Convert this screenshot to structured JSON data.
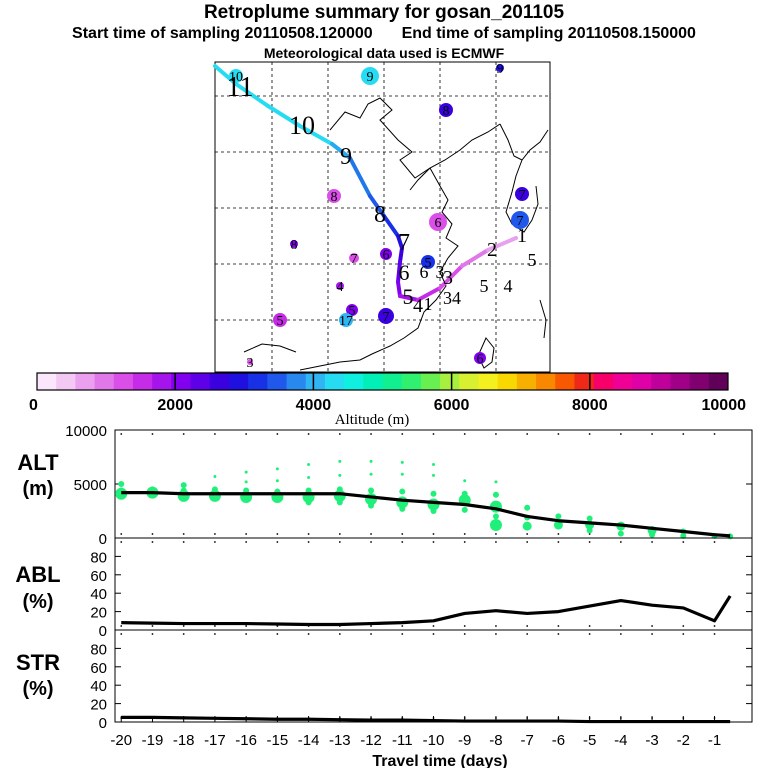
{
  "title": "Retroplume summary for gosan_201105",
  "start_label": "Start time of sampling 20110508.120000",
  "end_label": "End time of sampling 20110508.150000",
  "met_label": "Meteorological data used is ECMWF",
  "colorbar": {
    "label": "Altitude (m)",
    "ticks": [
      "0",
      "2000",
      "4000",
      "6000",
      "8000",
      "10000"
    ],
    "colors": [
      "#fbe6fb",
      "#f3c8f3",
      "#eaa0ee",
      "#e078ea",
      "#d94fe8",
      "#c62ce8",
      "#a514ea",
      "#8200f0",
      "#5e00e8",
      "#3b00e0",
      "#2010e0",
      "#1830e6",
      "#1f58ea",
      "#2888ee",
      "#30b4f2",
      "#26dcf2",
      "#10f0e0",
      "#00f0b8",
      "#10f090",
      "#30f070",
      "#68f050",
      "#a8f040",
      "#d8f030",
      "#f4f020",
      "#f8d800",
      "#f8b000",
      "#f88800",
      "#f85800",
      "#f02818",
      "#f8006a",
      "#f00094",
      "#e000a8",
      "#c0009a",
      "#a00088",
      "#800070",
      "#600058"
    ]
  },
  "map": {
    "markers": [
      {
        "label": "10",
        "color": "#26dcf2"
      },
      {
        "label": "9",
        "color": "#26dcf2"
      },
      {
        "label": "9",
        "color": "#2010e0"
      },
      {
        "label": "8",
        "color": "#3b00e0"
      },
      {
        "label": "8",
        "color": "#d94fe8"
      },
      {
        "label": "6",
        "color": "#d94fe8"
      },
      {
        "label": "7",
        "color": "#3b00e0"
      },
      {
        "label": "7",
        "color": "#1f58ea"
      },
      {
        "label": "8",
        "color": "#8200f0"
      },
      {
        "label": "7",
        "color": "#d94fe8"
      },
      {
        "label": "6",
        "color": "#8200f0"
      },
      {
        "label": "5",
        "color": "#1830e6"
      },
      {
        "label": "4",
        "color": "#a514ea"
      },
      {
        "label": "5",
        "color": "#c62ce8"
      },
      {
        "label": "5",
        "color": "#8200f0"
      },
      {
        "label": "17",
        "color": "#30b4f2"
      },
      {
        "label": "7",
        "color": "#3b00e0"
      },
      {
        "label": "6",
        "color": "#8200f0"
      },
      {
        "label": "3",
        "color": "#d94fe8"
      }
    ],
    "path_labels": [
      "11",
      "10",
      "9",
      "8",
      "7",
      "6",
      "5",
      "4",
      "3",
      "2",
      "1"
    ],
    "extra_labels": [
      "6",
      "3",
      "5",
      "4",
      "5",
      "34",
      "1"
    ]
  },
  "chart_data": [
    {
      "type": "line",
      "panel": "ALT",
      "ylabel": "ALT",
      "yunit": "(m)",
      "ylim": [
        0,
        10000
      ],
      "yticks": [
        0,
        5000,
        10000
      ],
      "x": [
        -20,
        -19,
        -18,
        -17,
        -16,
        -15,
        -14,
        -13,
        -12,
        -11,
        -10,
        -9,
        -8,
        -7,
        -6,
        -5,
        -4,
        -3,
        -2,
        -1,
        -0.5
      ],
      "values": [
        4200,
        4200,
        4100,
        4100,
        4100,
        4100,
        4100,
        4100,
        3800,
        3500,
        3300,
        3100,
        2700,
        2000,
        1600,
        1400,
        1200,
        900,
        600,
        300,
        200
      ],
      "scatter": [
        {
          "x": -20,
          "y": 4100,
          "size": "large"
        },
        {
          "x": -20,
          "y": 4400,
          "size": "small"
        },
        {
          "x": -20,
          "y": 5000,
          "size": "small"
        },
        {
          "x": -19,
          "y": 4200,
          "size": "large"
        },
        {
          "x": -19,
          "y": 4500,
          "size": "small"
        },
        {
          "x": -18,
          "y": 3900,
          "size": "large"
        },
        {
          "x": -18,
          "y": 4400,
          "size": "small"
        },
        {
          "x": -18,
          "y": 4900,
          "size": "small"
        },
        {
          "x": -17,
          "y": 3900,
          "size": "large"
        },
        {
          "x": -17,
          "y": 4500,
          "size": "small"
        },
        {
          "x": -17,
          "y": 5700,
          "size": "tiny"
        },
        {
          "x": -16,
          "y": 3800,
          "size": "large"
        },
        {
          "x": -16,
          "y": 4400,
          "size": "small"
        },
        {
          "x": -16,
          "y": 5200,
          "size": "tiny"
        },
        {
          "x": -16,
          "y": 6100,
          "size": "tiny"
        },
        {
          "x": -15,
          "y": 3800,
          "size": "large"
        },
        {
          "x": -15,
          "y": 4300,
          "size": "small"
        },
        {
          "x": -15,
          "y": 5300,
          "size": "tiny"
        },
        {
          "x": -15,
          "y": 6400,
          "size": "tiny"
        },
        {
          "x": -14,
          "y": 3800,
          "size": "large"
        },
        {
          "x": -14,
          "y": 3300,
          "size": "small"
        },
        {
          "x": -14,
          "y": 4400,
          "size": "small"
        },
        {
          "x": -14,
          "y": 5600,
          "size": "tiny"
        },
        {
          "x": -14,
          "y": 6800,
          "size": "tiny"
        },
        {
          "x": -13,
          "y": 3900,
          "size": "large"
        },
        {
          "x": -13,
          "y": 3300,
          "size": "small"
        },
        {
          "x": -13,
          "y": 4500,
          "size": "small"
        },
        {
          "x": -13,
          "y": 5800,
          "size": "tiny"
        },
        {
          "x": -13,
          "y": 7100,
          "size": "tiny"
        },
        {
          "x": -12,
          "y": 3600,
          "size": "large"
        },
        {
          "x": -12,
          "y": 3000,
          "size": "small"
        },
        {
          "x": -12,
          "y": 4400,
          "size": "small"
        },
        {
          "x": -12,
          "y": 5900,
          "size": "tiny"
        },
        {
          "x": -12,
          "y": 7100,
          "size": "tiny"
        },
        {
          "x": -11,
          "y": 3300,
          "size": "large"
        },
        {
          "x": -11,
          "y": 2700,
          "size": "small"
        },
        {
          "x": -11,
          "y": 4300,
          "size": "small"
        },
        {
          "x": -11,
          "y": 5900,
          "size": "tiny"
        },
        {
          "x": -11,
          "y": 7000,
          "size": "tiny"
        },
        {
          "x": -10,
          "y": 3100,
          "size": "large"
        },
        {
          "x": -10,
          "y": 2500,
          "size": "small"
        },
        {
          "x": -10,
          "y": 4100,
          "size": "small"
        },
        {
          "x": -10,
          "y": 5800,
          "size": "tiny"
        },
        {
          "x": -10,
          "y": 6800,
          "size": "tiny"
        },
        {
          "x": -9,
          "y": 3500,
          "size": "large"
        },
        {
          "x": -9,
          "y": 2600,
          "size": "small"
        },
        {
          "x": -9,
          "y": 4100,
          "size": "small"
        },
        {
          "x": -9,
          "y": 5300,
          "size": "tiny"
        },
        {
          "x": -8,
          "y": 1200,
          "size": "large"
        },
        {
          "x": -8,
          "y": 2900,
          "size": "large"
        },
        {
          "x": -8,
          "y": 2000,
          "size": "small"
        },
        {
          "x": -8,
          "y": 4000,
          "size": "small"
        },
        {
          "x": -8,
          "y": 5200,
          "size": "tiny"
        },
        {
          "x": -7,
          "y": 1100,
          "size": "medium"
        },
        {
          "x": -7,
          "y": 1900,
          "size": "small"
        },
        {
          "x": -7,
          "y": 2800,
          "size": "small"
        },
        {
          "x": -6,
          "y": 1200,
          "size": "medium"
        },
        {
          "x": -6,
          "y": 2000,
          "size": "small"
        },
        {
          "x": -5,
          "y": 700,
          "size": "small"
        },
        {
          "x": -5,
          "y": 1200,
          "size": "medium"
        },
        {
          "x": -5,
          "y": 1800,
          "size": "small"
        },
        {
          "x": -4,
          "y": 400,
          "size": "small"
        },
        {
          "x": -4,
          "y": 1100,
          "size": "medium"
        },
        {
          "x": -3,
          "y": 300,
          "size": "small"
        },
        {
          "x": -3,
          "y": 700,
          "size": "medium"
        },
        {
          "x": -2,
          "y": 200,
          "size": "small"
        },
        {
          "x": -2,
          "y": 600,
          "size": "small"
        },
        {
          "x": -1,
          "y": 200,
          "size": "small"
        },
        {
          "x": -0.5,
          "y": 150,
          "size": "small"
        }
      ]
    },
    {
      "type": "line",
      "panel": "ABL",
      "ylabel": "ABL",
      "yunit": "(%)",
      "ylim": [
        0,
        100
      ],
      "yticks": [
        0,
        20,
        40,
        60,
        80
      ],
      "x": [
        -20,
        -19,
        -18,
        -17,
        -16,
        -15,
        -14,
        -13,
        -12,
        -11,
        -10,
        -9,
        -8,
        -7,
        -6,
        -5,
        -4,
        -3,
        -2,
        -1,
        -0.5
      ],
      "values": [
        8,
        7.5,
        7,
        7,
        7,
        6.5,
        6,
        6,
        7,
        8,
        10,
        18,
        21,
        18,
        20,
        26,
        32,
        27,
        24,
        10,
        37
      ]
    },
    {
      "type": "line",
      "panel": "STR",
      "ylabel": "STR",
      "yunit": "(%)",
      "ylim": [
        0,
        100
      ],
      "yticks": [
        0,
        20,
        40,
        60,
        80
      ],
      "x": [
        -20,
        -19,
        -18,
        -17,
        -16,
        -15,
        -14,
        -13,
        -12,
        -11,
        -10,
        -9,
        -8,
        -7,
        -6,
        -5,
        -4,
        -3,
        -2,
        -1,
        -0.5
      ],
      "values": [
        5,
        5,
        4.5,
        4,
        3.5,
        3,
        3,
        2.5,
        2,
        2,
        1.5,
        1,
        1,
        1,
        1,
        0.5,
        0.5,
        0.5,
        0.5,
        0.5,
        0.5
      ]
    }
  ],
  "xaxis": {
    "label": "Travel time (days)",
    "ticks": [
      "-20",
      "-19",
      "-18",
      "-17",
      "-16",
      "-15",
      "-14",
      "-13",
      "-12",
      "-11",
      "-10",
      "-9",
      "-8",
      "-7",
      "-6",
      "-5",
      "-4",
      "-3",
      "-2",
      "-1"
    ],
    "xlim": [
      -20.2,
      0.2
    ]
  }
}
